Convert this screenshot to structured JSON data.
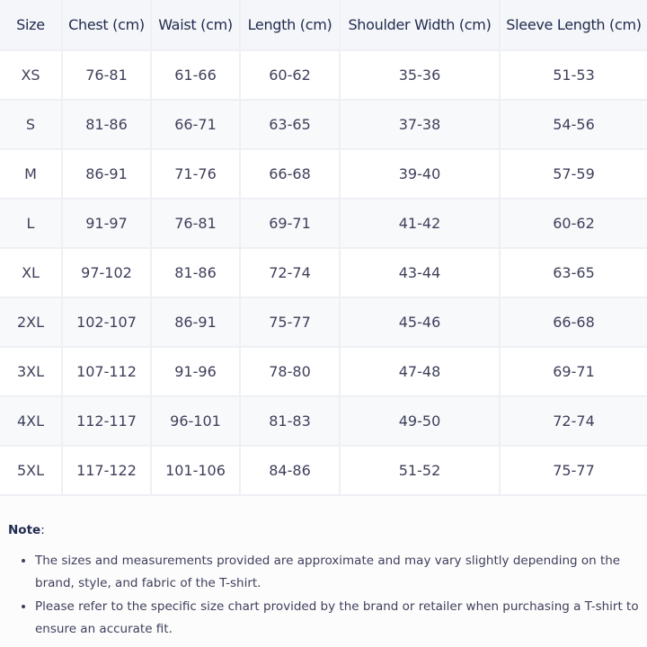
{
  "table": {
    "headers": [
      "Size",
      "Chest (cm)",
      "Waist (cm)",
      "Length (cm)",
      "Shoulder Width (cm)",
      "Sleeve Length (cm)"
    ],
    "rows": [
      [
        "XS",
        "76-81",
        "61-66",
        "60-62",
        "35-36",
        "51-53"
      ],
      [
        "S",
        "81-86",
        "66-71",
        "63-65",
        "37-38",
        "54-56"
      ],
      [
        "M",
        "86-91",
        "71-76",
        "66-68",
        "39-40",
        "57-59"
      ],
      [
        "L",
        "91-97",
        "76-81",
        "69-71",
        "41-42",
        "60-62"
      ],
      [
        "XL",
        "97-102",
        "81-86",
        "72-74",
        "43-44",
        "63-65"
      ],
      [
        "2XL",
        "102-107",
        "86-91",
        "75-77",
        "45-46",
        "66-68"
      ],
      [
        "3XL",
        "107-112",
        "91-96",
        "78-80",
        "47-48",
        "69-71"
      ],
      [
        "4XL",
        "112-117",
        "96-101",
        "81-83",
        "49-50",
        "72-74"
      ],
      [
        "5XL",
        "117-122",
        "101-106",
        "84-86",
        "51-52",
        "75-77"
      ]
    ]
  },
  "note": {
    "label": "Note",
    "colon": ":",
    "items": [
      "The sizes and measurements provided are approximate and may vary slightly depending on the brand, style, and fabric of the T-shirt.",
      "Please refer to the specific size chart provided by the brand or retailer when purchasing a T-shirt to ensure an accurate fit."
    ]
  }
}
